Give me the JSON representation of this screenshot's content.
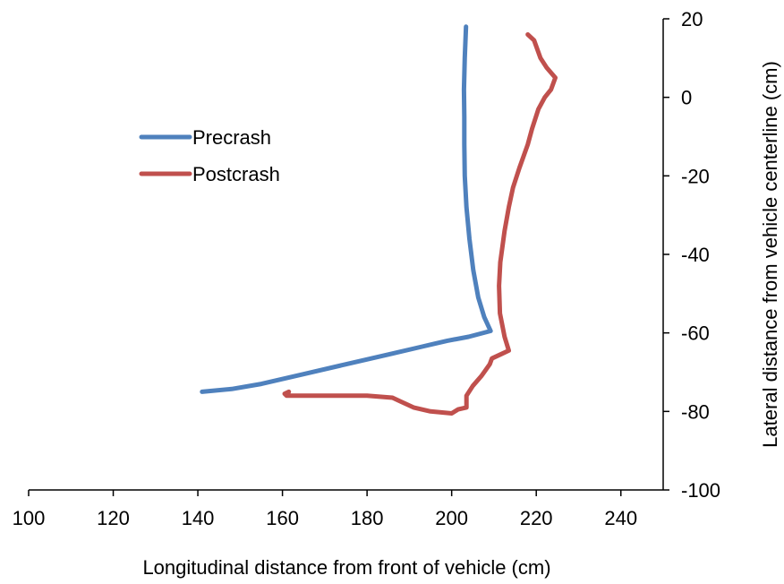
{
  "chart_data": {
    "type": "line",
    "title": "",
    "xlabel": "Longitudinal distance from front of vehicle (cm)",
    "ylabel": "Lateral distance from vehicle centerline (cm)",
    "xlim": [
      100,
      250
    ],
    "ylim": [
      -100,
      20
    ],
    "x_ticks": [
      100,
      120,
      140,
      160,
      180,
      200,
      220,
      240
    ],
    "y_ticks": [
      20,
      0,
      -20,
      -40,
      -60,
      -80,
      -100
    ],
    "y_axis_side": "right",
    "grid": false,
    "legend_position": "upper-left",
    "series": [
      {
        "name": "Precrash",
        "color": "#4F81BD",
        "points": [
          [
            203.4,
            18
          ],
          [
            203.1,
            10
          ],
          [
            202.9,
            2
          ],
          [
            203.0,
            -5
          ],
          [
            203.0,
            -12
          ],
          [
            203.1,
            -20
          ],
          [
            203.5,
            -28
          ],
          [
            204.2,
            -36
          ],
          [
            205.1,
            -44
          ],
          [
            206.3,
            -51
          ],
          [
            207.7,
            -56
          ],
          [
            209.2,
            -59.5
          ],
          [
            204.0,
            -61
          ],
          [
            199.0,
            -62
          ],
          [
            193.0,
            -63.5
          ],
          [
            185.0,
            -65.5
          ],
          [
            175.0,
            -68
          ],
          [
            165.0,
            -70.5
          ],
          [
            155.0,
            -73
          ],
          [
            148.0,
            -74.3
          ],
          [
            141.0,
            -75
          ]
        ]
      },
      {
        "name": "Postcrash",
        "color": "#C0504D",
        "points": [
          [
            218.0,
            16
          ],
          [
            219.5,
            14.5
          ],
          [
            221.0,
            10
          ],
          [
            222.5,
            7.5
          ],
          [
            224.5,
            5
          ],
          [
            223.5,
            2
          ],
          [
            222.0,
            0
          ],
          [
            220.5,
            -3
          ],
          [
            219.0,
            -8
          ],
          [
            218.0,
            -12
          ],
          [
            216.0,
            -18
          ],
          [
            214.5,
            -23
          ],
          [
            213.5,
            -28
          ],
          [
            212.5,
            -34
          ],
          [
            211.5,
            -42
          ],
          [
            211.2,
            -48
          ],
          [
            211.4,
            -55
          ],
          [
            212.5,
            -61
          ],
          [
            213.5,
            -64.5
          ],
          [
            211.5,
            -65.5
          ],
          [
            209.5,
            -66.5
          ],
          [
            209.0,
            -68
          ],
          [
            207.0,
            -71
          ],
          [
            205.0,
            -73.5
          ],
          [
            203.5,
            -76
          ],
          [
            203.5,
            -79
          ],
          [
            201.5,
            -79.5
          ],
          [
            200.0,
            -80.5
          ],
          [
            195.0,
            -80
          ],
          [
            191.0,
            -79
          ],
          [
            188.0,
            -77.5
          ],
          [
            186.0,
            -76.5
          ],
          [
            180.0,
            -76
          ],
          [
            170.0,
            -76
          ],
          [
            165.0,
            -76
          ],
          [
            161.0,
            -76
          ],
          [
            160.5,
            -75.5
          ],
          [
            161.5,
            -75
          ]
        ]
      }
    ]
  }
}
